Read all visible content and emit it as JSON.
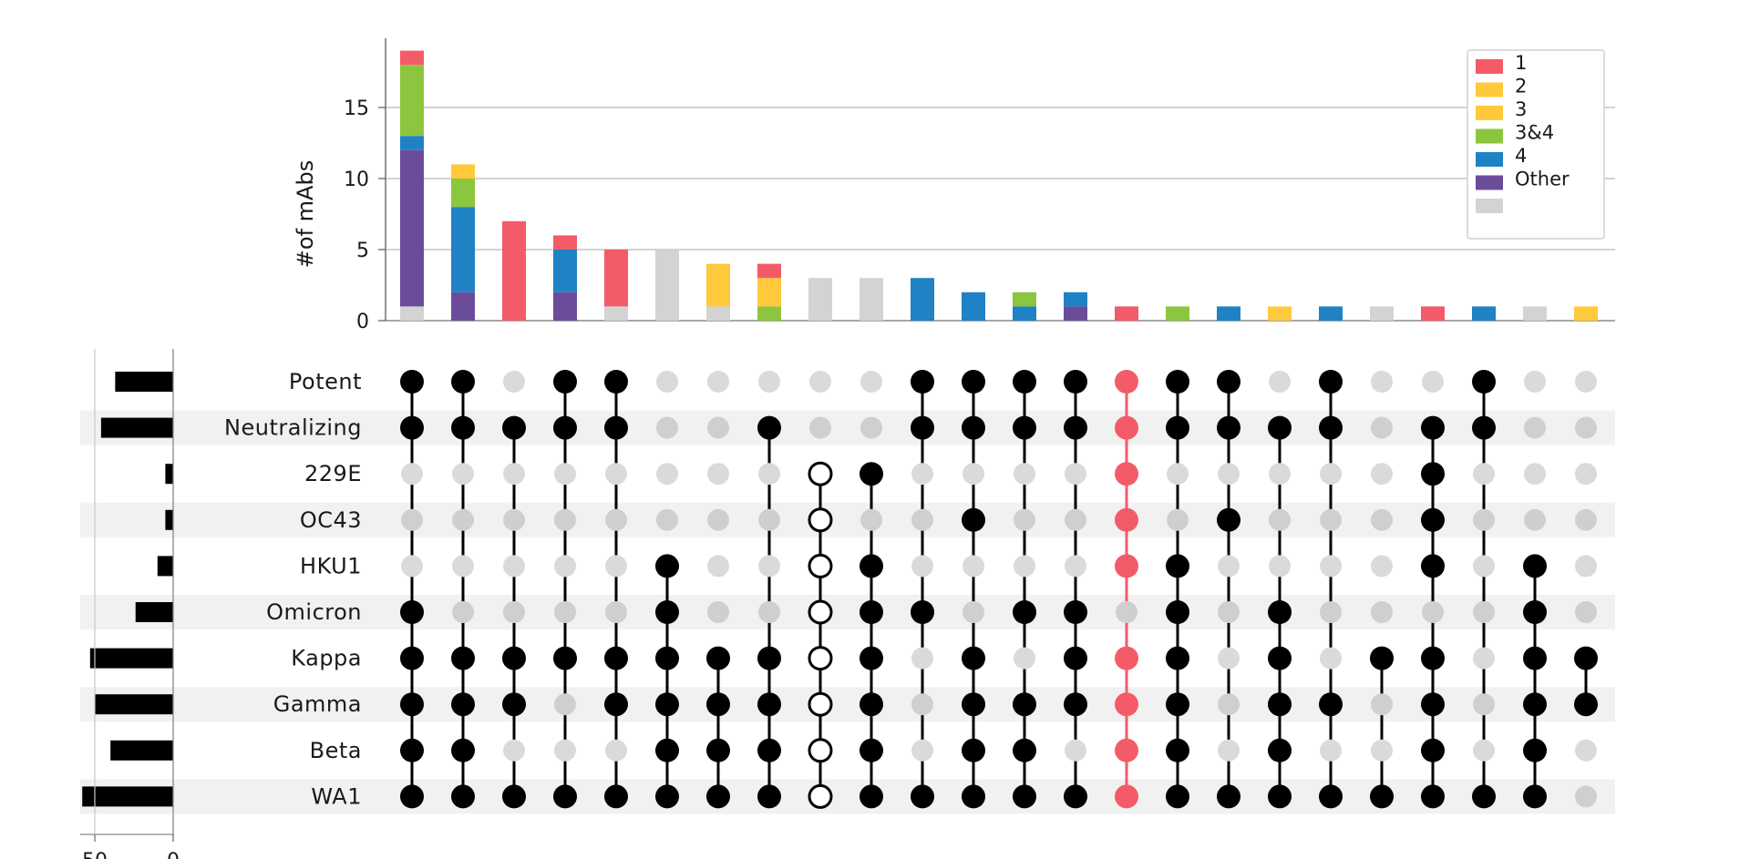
{
  "chart_data": {
    "type": "bar",
    "subtype": "upset",
    "ylabel": "#of mAbs",
    "ylim": [
      0,
      20
    ],
    "y_ticks": [
      0,
      5,
      10,
      15
    ],
    "grid": true,
    "legend_position": "top-right",
    "legend": [
      {
        "label": "1",
        "color": "#f45b69"
      },
      {
        "label": "2",
        "color": "#ffc93c"
      },
      {
        "label": "3",
        "color": "#ffc93c"
      },
      {
        "label": "3&4",
        "color": "#8cc63f"
      },
      {
        "label": "4",
        "color": "#1f82c4"
      },
      {
        "label": "Other",
        "color": "#6b4c9a"
      },
      {
        "label": "",
        "color": "#d3d3d3"
      }
    ],
    "segment_colors": {
      "gray": "#d3d3d3",
      "purple": "#6b4c9a",
      "blue": "#1f82c4",
      "green": "#8cc63f",
      "yellow": "#ffc93c",
      "red": "#f45b69"
    },
    "sets": [
      "Potent",
      "Neutralizing",
      "229E",
      "OC43",
      "HKU1",
      "Omicron",
      "Kappa",
      "Gamma",
      "Beta",
      "WA1"
    ],
    "set_sizes": [
      37,
      46,
      5,
      5,
      10,
      24,
      53,
      50,
      40,
      58
    ],
    "set_size_ticks": [
      50,
      0
    ],
    "set_size_max": 60,
    "intersections": [
      {
        "members": [
          "Potent",
          "Neutralizing",
          "Omicron",
          "Kappa",
          "Gamma",
          "Beta",
          "WA1"
        ],
        "segments": {
          "gray": 1,
          "purple": 11,
          "blue": 1,
          "green": 5,
          "red": 1
        }
      },
      {
        "members": [
          "Potent",
          "Neutralizing",
          "Kappa",
          "Gamma",
          "Beta",
          "WA1"
        ],
        "segments": {
          "purple": 2,
          "blue": 6,
          "green": 2,
          "yellow": 1
        }
      },
      {
        "members": [
          "Neutralizing",
          "Kappa",
          "Gamma",
          "WA1"
        ],
        "segments": {
          "red": 7
        }
      },
      {
        "members": [
          "Potent",
          "Neutralizing",
          "Kappa",
          "WA1"
        ],
        "segments": {
          "purple": 2,
          "blue": 3,
          "red": 1
        }
      },
      {
        "members": [
          "Potent",
          "Neutralizing",
          "Kappa",
          "Gamma",
          "WA1"
        ],
        "segments": {
          "gray": 1,
          "red": 4
        }
      },
      {
        "members": [
          "HKU1",
          "Omicron",
          "Kappa",
          "Gamma",
          "Beta",
          "WA1"
        ],
        "segments": {
          "gray": 5
        }
      },
      {
        "members": [
          "Kappa",
          "Gamma",
          "Beta",
          "WA1"
        ],
        "segments": {
          "gray": 1,
          "yellow": 3
        }
      },
      {
        "members": [
          "Neutralizing",
          "Kappa",
          "Gamma",
          "Beta",
          "WA1"
        ],
        "segments": {
          "green": 1,
          "yellow": 2,
          "red": 1
        }
      },
      {
        "members": [
          "229E",
          "OC43",
          "HKU1",
          "Omicron",
          "Kappa",
          "Gamma",
          "Beta",
          "WA1"
        ],
        "segments": {
          "gray": 3
        },
        "open": true
      },
      {
        "members": [
          "229E",
          "HKU1",
          "Omicron",
          "Kappa",
          "Gamma",
          "Beta",
          "WA1"
        ],
        "segments": {
          "gray": 3
        }
      },
      {
        "members": [
          "Potent",
          "Neutralizing",
          "Omicron",
          "WA1"
        ],
        "segments": {
          "blue": 3
        }
      },
      {
        "members": [
          "Potent",
          "Neutralizing",
          "OC43",
          "Kappa",
          "Gamma",
          "Beta",
          "WA1"
        ],
        "segments": {
          "blue": 2
        }
      },
      {
        "members": [
          "Potent",
          "Neutralizing",
          "Omicron",
          "Gamma",
          "Beta",
          "WA1"
        ],
        "segments": {
          "blue": 1,
          "green": 1
        }
      },
      {
        "members": [
          "Potent",
          "Neutralizing",
          "Omicron",
          "Kappa",
          "Gamma",
          "WA1"
        ],
        "segments": {
          "purple": 1,
          "blue": 1
        }
      },
      {
        "members": [
          "Potent",
          "Neutralizing",
          "229E",
          "OC43",
          "HKU1",
          "Kappa",
          "Gamma",
          "Beta",
          "WA1"
        ],
        "segments": {
          "red": 1
        },
        "highlight": true
      },
      {
        "members": [
          "Potent",
          "Neutralizing",
          "HKU1",
          "Omicron",
          "Kappa",
          "Gamma",
          "Beta",
          "WA1"
        ],
        "segments": {
          "green": 1
        }
      },
      {
        "members": [
          "Potent",
          "Neutralizing",
          "OC43",
          "WA1"
        ],
        "segments": {
          "blue": 1
        }
      },
      {
        "members": [
          "Neutralizing",
          "Omicron",
          "Kappa",
          "Gamma",
          "Beta",
          "WA1"
        ],
        "segments": {
          "yellow": 1
        }
      },
      {
        "members": [
          "Potent",
          "Neutralizing",
          "Gamma",
          "WA1"
        ],
        "segments": {
          "blue": 1
        }
      },
      {
        "members": [
          "Kappa",
          "WA1"
        ],
        "segments": {
          "gray": 1
        }
      },
      {
        "members": [
          "Neutralizing",
          "229E",
          "OC43",
          "HKU1",
          "Kappa",
          "Gamma",
          "Beta",
          "WA1"
        ],
        "segments": {
          "red": 1
        }
      },
      {
        "members": [
          "Potent",
          "Neutralizing",
          "WA1"
        ],
        "segments": {
          "blue": 1
        }
      },
      {
        "members": [
          "HKU1",
          "Omicron",
          "Kappa",
          "Gamma",
          "Beta",
          "WA1"
        ],
        "segments": {
          "gray": 1
        }
      },
      {
        "members": [
          "Kappa",
          "Gamma"
        ],
        "segments": {
          "yellow": 1
        }
      }
    ]
  }
}
